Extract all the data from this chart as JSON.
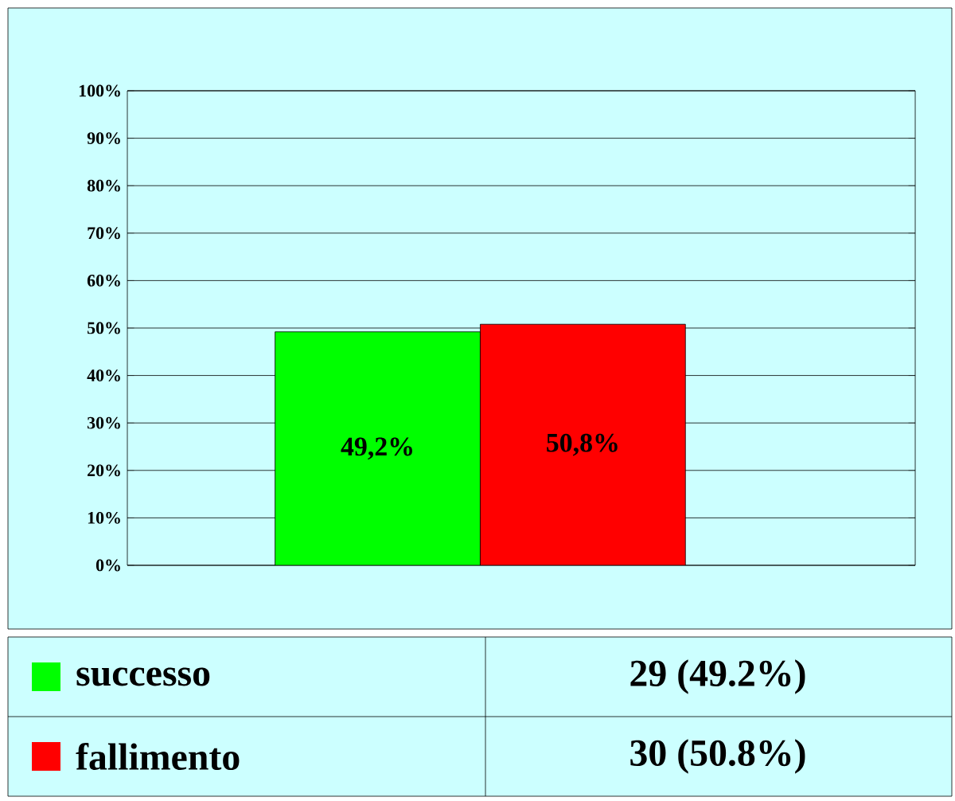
{
  "chart_data": {
    "type": "bar",
    "categories": [
      null,
      null
    ],
    "series": [
      {
        "name": "successo",
        "color": "#00ff00",
        "values": [
          49.2,
          null
        ],
        "value_labels": [
          "49,2%",
          null
        ]
      },
      {
        "name": "fallimento",
        "color": "#ff0000",
        "values": [
          null,
          50.8
        ],
        "value_labels": [
          null,
          "50,8%"
        ]
      }
    ],
    "ylim": [
      0,
      100
    ],
    "yticks": [
      {
        "value": 0,
        "label": "0%"
      },
      {
        "value": 10,
        "label": "10%"
      },
      {
        "value": 20,
        "label": "20%"
      },
      {
        "value": 30,
        "label": "30%"
      },
      {
        "value": 40,
        "label": "40%"
      },
      {
        "value": 50,
        "label": "50%"
      },
      {
        "value": 60,
        "label": "60%"
      },
      {
        "value": 70,
        "label": "70%"
      },
      {
        "value": 80,
        "label": "80%"
      },
      {
        "value": 90,
        "label": "90%"
      },
      {
        "value": 100,
        "label": "100%"
      }
    ],
    "grid": "y",
    "legend": "bottom",
    "annotations": [
      "29 (49.2%)",
      "30 (50.8%)"
    ]
  }
}
